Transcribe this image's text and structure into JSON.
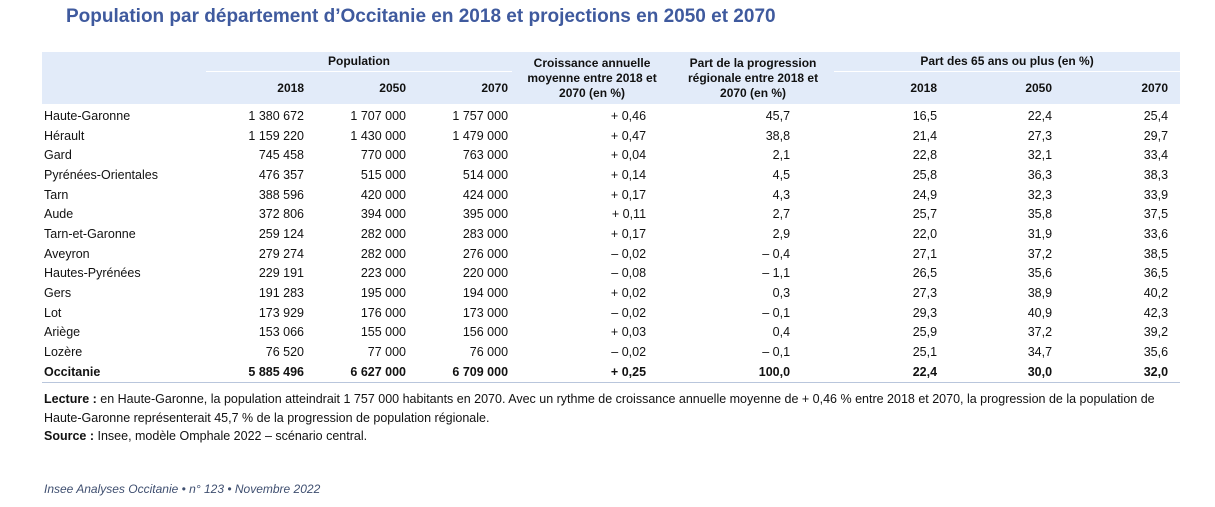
{
  "title": "Population par département d’Occitanie en 2018 et projections en 2050 et 2070",
  "headers": {
    "population": "Population",
    "croissance": "Croissance annuelle moyenne entre 2018 et 2070 (en %)",
    "part_progression": "Part de la progression régionale entre 2018 et 2070 (en %)",
    "part_65": "Part des 65 ans ou plus (en %)",
    "y2018": "2018",
    "y2050": "2050",
    "y2070": "2070"
  },
  "rows": [
    {
      "name": "Haute-Garonne",
      "p2018": "1 380 672",
      "p2050": "1 707 000",
      "p2070": "1 757 000",
      "croissance": "+ 0,46",
      "part": "45,7",
      "s2018": "16,5",
      "s2050": "22,4",
      "s2070": "25,4"
    },
    {
      "name": "Hérault",
      "p2018": "1 159 220",
      "p2050": "1 430 000",
      "p2070": "1 479 000",
      "croissance": "+ 0,47",
      "part": "38,8",
      "s2018": "21,4",
      "s2050": "27,3",
      "s2070": "29,7"
    },
    {
      "name": "Gard",
      "p2018": "745 458",
      "p2050": "770 000",
      "p2070": "763 000",
      "croissance": "+ 0,04",
      "part": "2,1",
      "s2018": "22,8",
      "s2050": "32,1",
      "s2070": "33,4"
    },
    {
      "name": "Pyrénées-Orientales",
      "p2018": "476 357",
      "p2050": "515 000",
      "p2070": "514 000",
      "croissance": "+ 0,14",
      "part": "4,5",
      "s2018": "25,8",
      "s2050": "36,3",
      "s2070": "38,3"
    },
    {
      "name": "Tarn",
      "p2018": "388 596",
      "p2050": "420 000",
      "p2070": "424 000",
      "croissance": "+ 0,17",
      "part": "4,3",
      "s2018": "24,9",
      "s2050": "32,3",
      "s2070": "33,9"
    },
    {
      "name": "Aude",
      "p2018": "372 806",
      "p2050": "394 000",
      "p2070": "395 000",
      "croissance": "+ 0,11",
      "part": "2,7",
      "s2018": "25,7",
      "s2050": "35,8",
      "s2070": "37,5"
    },
    {
      "name": "Tarn-et-Garonne",
      "p2018": "259 124",
      "p2050": "282 000",
      "p2070": "283 000",
      "croissance": "+ 0,17",
      "part": "2,9",
      "s2018": "22,0",
      "s2050": "31,9",
      "s2070": "33,6"
    },
    {
      "name": "Aveyron",
      "p2018": "279 274",
      "p2050": "282 000",
      "p2070": "276 000",
      "croissance": "– 0,02",
      "part": "– 0,4",
      "s2018": "27,1",
      "s2050": "37,2",
      "s2070": "38,5"
    },
    {
      "name": "Hautes-Pyrénées",
      "p2018": "229 191",
      "p2050": "223 000",
      "p2070": "220 000",
      "croissance": "– 0,08",
      "part": "– 1,1",
      "s2018": "26,5",
      "s2050": "35,6",
      "s2070": "36,5"
    },
    {
      "name": "Gers",
      "p2018": "191 283",
      "p2050": "195 000",
      "p2070": "194 000",
      "croissance": "+ 0,02",
      "part": "0,3",
      "s2018": "27,3",
      "s2050": "38,9",
      "s2070": "40,2"
    },
    {
      "name": "Lot",
      "p2018": "173 929",
      "p2050": "176 000",
      "p2070": "173 000",
      "croissance": "– 0,02",
      "part": "– 0,1",
      "s2018": "29,3",
      "s2050": "40,9",
      "s2070": "42,3"
    },
    {
      "name": "Ariège",
      "p2018": "153 066",
      "p2050": "155 000",
      "p2070": "156 000",
      "croissance": "+ 0,03",
      "part": "0,4",
      "s2018": "25,9",
      "s2050": "37,2",
      "s2070": "39,2"
    },
    {
      "name": "Lozère",
      "p2018": "76 520",
      "p2050": "77 000",
      "p2070": "76 000",
      "croissance": "– 0,02",
      "part": "– 0,1",
      "s2018": "25,1",
      "s2050": "34,7",
      "s2070": "35,6"
    }
  ],
  "total": {
    "name": "Occitanie",
    "p2018": "5 885 496",
    "p2050": "6 627 000",
    "p2070": "6 709 000",
    "croissance": "+ 0,25",
    "part": "100,0",
    "s2018": "22,4",
    "s2050": "30,0",
    "s2070": "32,0"
  },
  "notes": {
    "lecture_label": "Lecture :",
    "lecture_text": " en Haute-Garonne, la population atteindrait 1 757 000 habitants en 2070. Avec un rythme de croissance annuelle moyenne de + 0,46 % entre 2018 et 2070, la progression de la population de Haute-Garonne représenterait 45,7 % de la progression de population régionale.",
    "source_label": "Source :",
    "source_text": " Insee, modèle Omphale 2022 – scénario central."
  },
  "footer": "Insee Analyses Occitanie • n° 123 • Novembre 2022",
  "colors": {
    "title": "#3f5a9e",
    "header_bg": "#e2ebf9",
    "rule": "#b9c6dc"
  }
}
